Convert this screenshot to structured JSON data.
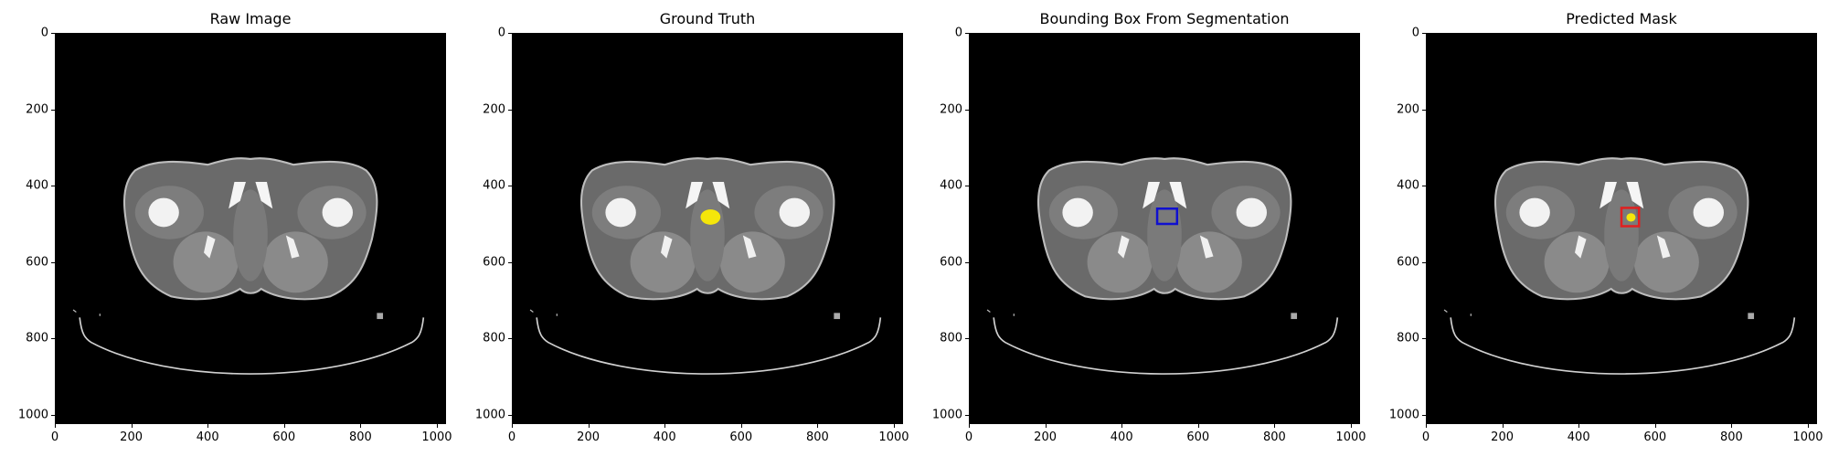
{
  "panels": [
    {
      "title": "Raw Image",
      "overlay": "none"
    },
    {
      "title": "Ground Truth",
      "overlay": "gt-mask"
    },
    {
      "title": "Bounding Box From Segmentation",
      "overlay": "bbox"
    },
    {
      "title": "Predicted Mask",
      "overlay": "pred"
    }
  ],
  "axes": {
    "x_ticks": [
      "0",
      "200",
      "400",
      "600",
      "800",
      "1000"
    ],
    "y_ticks": [
      "0",
      "200",
      "400",
      "600",
      "800",
      "1000"
    ],
    "range": [
      0,
      1024
    ]
  },
  "colors": {
    "mask": "#f5e60a",
    "bbox_gt": "#1010d0",
    "bbox_pred": "#e02020",
    "background": "#000000"
  }
}
